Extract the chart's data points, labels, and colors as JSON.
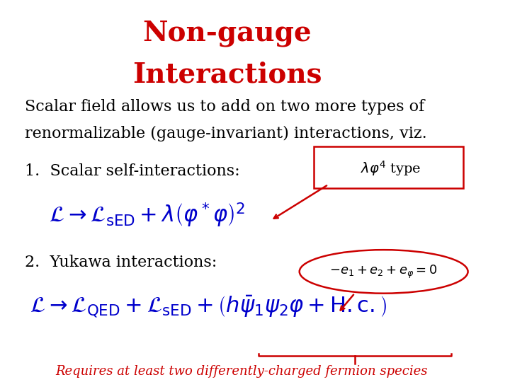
{
  "title_line1": "Non-gauge",
  "title_line2": "Interactions",
  "title_color": "#cc0000",
  "title_fontsize": 28,
  "title_fontstyle": "bold",
  "body_text1": "Scalar field allows us to add on two more types of",
  "body_text2": "renormalizable (gauge-invariant) interactions, viz.",
  "body_color": "#000000",
  "body_fontsize": 16,
  "item1_label": "1.  Scalar self-interactions:",
  "item2_label": "2.  Yukawa interactions:",
  "item_color": "#000000",
  "item_fontsize": 16,
  "eq_color": "#0000cc",
  "eq_fontsize": 22,
  "callout1_text": "$\\lambda\\varphi^4$ type",
  "callout1_color": "#cc0000",
  "callout2_text": "$-e_1 + e_2 + e_{\\varphi} = 0$",
  "callout2_color": "#cc0000",
  "footer_text": "Requires at least two differently-charged fermion species",
  "footer_color": "#cc0000",
  "footer_fontsize": 13,
  "background_color": "#ffffff"
}
